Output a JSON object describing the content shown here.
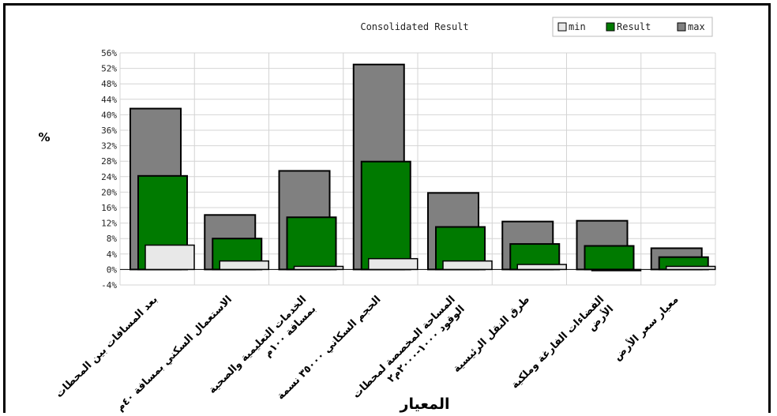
{
  "chart_data": {
    "type": "bar",
    "title": "Consolidated Result",
    "ylabel": "%",
    "xlabel": "المعيار",
    "ylim": [
      -4,
      56
    ],
    "ytick_step": 4,
    "ytick_suffix": "%",
    "grid": true,
    "legend_position": "top-right",
    "categories": [
      "بعد المسافات بين المحطات",
      "الاستعمال السكني بمسافة ٤٠م",
      "الخدمات التعليمية والصحية بمسافة ١٠٠م",
      "الحجم السكاني ٣٥٠٠٠ نسمة",
      "المساحة المخصصة لمحطات الوقود ١٠٠٠-٢٠٠٠م٢",
      "طرق النقل الرئيسية",
      "الفضاءات الفارغة وملكية الأرض",
      "معيار سعر الأرض"
    ],
    "series": [
      {
        "name": "min",
        "color": "#e8e8e8",
        "values": [
          6.3,
          2.2,
          0.8,
          2.8,
          2.2,
          1.3,
          -0.3,
          0.8
        ]
      },
      {
        "name": "Result",
        "color": "#007a00",
        "values": [
          24.2,
          8.0,
          13.5,
          27.9,
          11.0,
          6.6,
          6.1,
          3.2
        ]
      },
      {
        "name": "max",
        "color": "#808080",
        "values": [
          41.6,
          14.1,
          25.5,
          53.0,
          19.8,
          12.4,
          12.6,
          5.5
        ]
      }
    ]
  }
}
